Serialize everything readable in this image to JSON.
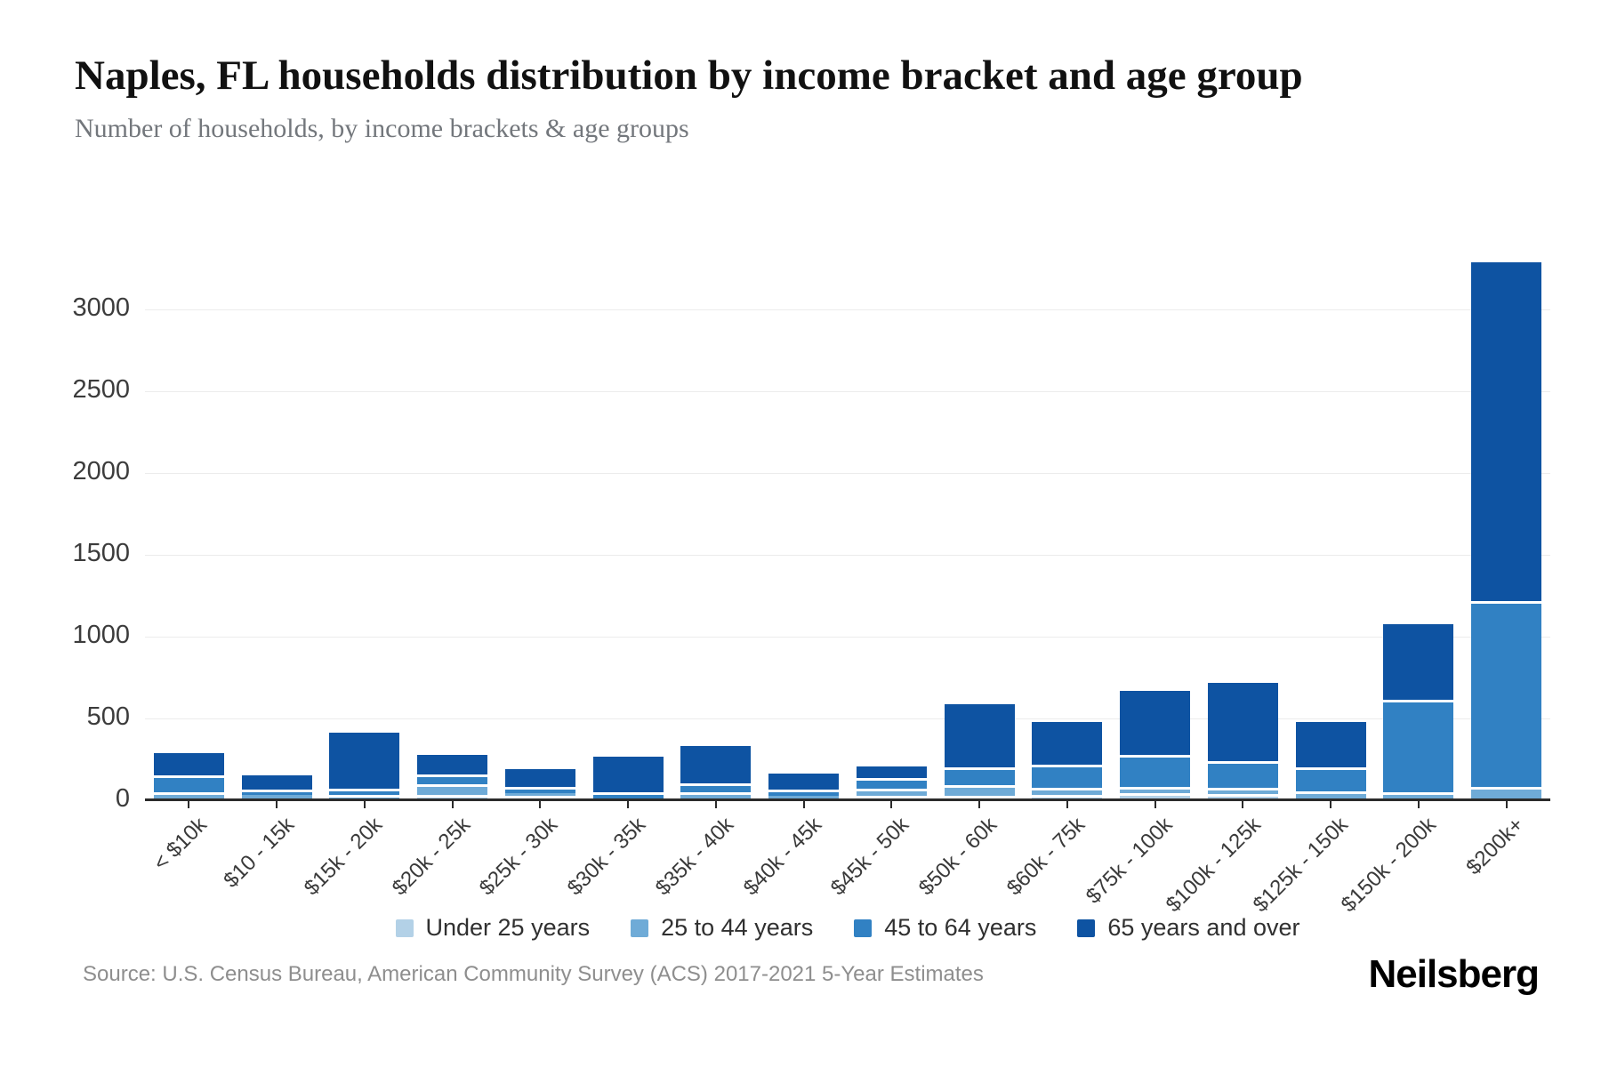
{
  "header": {
    "title": "Naples, FL households distribution by income bracket and age group",
    "subtitle": "Number of households, by income brackets & age groups"
  },
  "chart_data": {
    "type": "bar",
    "stacked": true,
    "title": "Naples, FL households distribution by income bracket and age group",
    "subtitle": "Number of households, by income brackets & age groups",
    "xlabel": "",
    "ylabel": "",
    "categories": [
      "< $10k",
      "$10 - 15k",
      "$15k - 20k",
      "$20k - 25k",
      "$25k - 30k",
      "$30k - 35k",
      "$35k - 40k",
      "$40k - 45k",
      "$45k - 50k",
      "$50k - 60k",
      "$60k - 75k",
      "$75k - 100k",
      "$100k - 125k",
      "$125k - 150k",
      "$150k - 200k",
      "$200k+"
    ],
    "series": [
      {
        "name": "Under 25 years",
        "color": "#b3d1e7",
        "values": [
          10,
          0,
          0,
          15,
          10,
          0,
          10,
          0,
          10,
          10,
          15,
          25,
          20,
          0,
          0,
          0
        ]
      },
      {
        "name": "25 to 44 years",
        "color": "#6fabd7",
        "values": [
          25,
          30,
          15,
          65,
          35,
          10,
          25,
          25,
          45,
          65,
          45,
          40,
          40,
          40,
          30,
          65
        ]
      },
      {
        "name": "45 to 64 years",
        "color": "#3181c3",
        "values": [
          100,
          20,
          40,
          60,
          20,
          25,
          50,
          25,
          65,
          110,
          140,
          195,
          165,
          145,
          570,
          1135
        ]
      },
      {
        "name": "65 years and over",
        "color": "#0e53a2",
        "values": [
          155,
          105,
          360,
          140,
          125,
          230,
          245,
          115,
          85,
          400,
          280,
          410,
          495,
          295,
          475,
          2090
        ]
      }
    ],
    "yticks": [
      0,
      500,
      1000,
      1500,
      2000,
      2500,
      3000
    ],
    "ylim": [
      0,
      3478
    ],
    "grid": true,
    "legend_position": "bottom"
  },
  "footer": {
    "source": "Source: U.S. Census Bureau, American Community Survey (ACS) 2017-2021 5-Year Estimates",
    "logo": "Neilsberg"
  }
}
